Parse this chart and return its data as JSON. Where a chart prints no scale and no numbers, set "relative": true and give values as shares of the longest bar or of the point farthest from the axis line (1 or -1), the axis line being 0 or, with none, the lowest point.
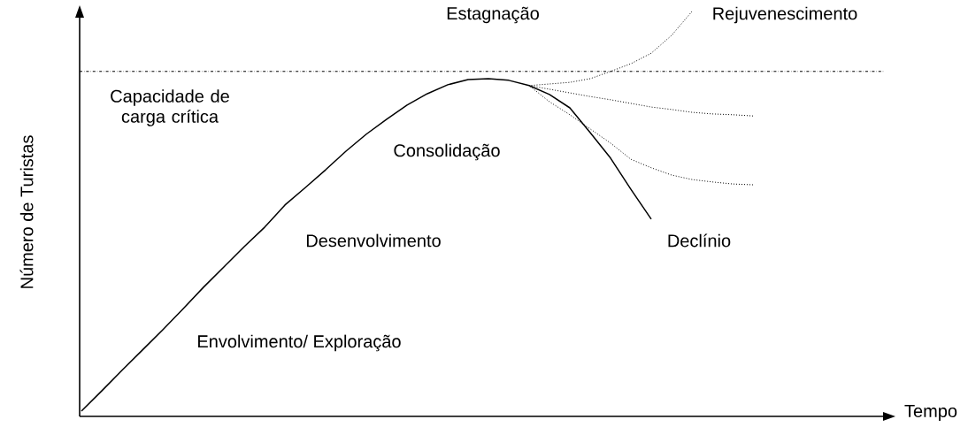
{
  "chart_data": {
    "type": "line",
    "relative": true,
    "xlabel": "Tempo",
    "ylabel": "Número de Turistas",
    "categories": [
      null,
      null,
      null,
      null,
      null,
      null,
      null,
      null,
      null,
      null,
      null,
      null,
      null,
      null,
      null,
      null,
      null,
      null,
      null,
      null,
      null,
      null,
      null,
      null,
      null,
      null,
      null,
      null,
      null,
      null,
      null,
      null,
      null,
      null,
      null,
      null,
      null,
      null,
      null,
      null
    ],
    "series": [
      {
        "color": "#000000",
        "line_style": "solid",
        "values": [
          0.013,
          0.063,
          0.114,
          0.164,
          0.214,
          0.266,
          0.319,
          0.369,
          0.419,
          0.467,
          0.522,
          0.565,
          0.609,
          0.655,
          0.697,
          0.734,
          0.769,
          0.797,
          0.819,
          0.832,
          0.834,
          0.83,
          0.817,
          0.795,
          0.762,
          0.701,
          0.638,
          0.561,
          0.487,
          null,
          null,
          null,
          null,
          null,
          null,
          null,
          null,
          null,
          null,
          null
        ]
      },
      {
        "color": "#000000",
        "line_style": "dotted",
        "values": [
          null,
          null,
          null,
          null,
          null,
          null,
          null,
          null,
          null,
          null,
          null,
          null,
          null,
          null,
          null,
          null,
          null,
          null,
          null,
          null,
          null,
          null,
          0.817,
          0.821,
          0.825,
          0.834,
          0.852,
          0.871,
          0.897,
          0.941,
          1.0,
          null,
          null,
          null,
          null,
          null,
          null,
          null,
          null,
          null
        ]
      },
      {
        "color": "#000000",
        "line_style": "dotted",
        "values": [
          null,
          null,
          null,
          null,
          null,
          null,
          null,
          null,
          null,
          null,
          null,
          null,
          null,
          null,
          null,
          null,
          null,
          null,
          null,
          null,
          null,
          null,
          0.817,
          0.808,
          0.799,
          0.79,
          0.782,
          0.773,
          0.764,
          0.758,
          0.751,
          0.747,
          0.745,
          0.742,
          null,
          null,
          null,
          null,
          null,
          null
        ]
      },
      {
        "color": "#000000",
        "line_style": "dotted",
        "values": [
          null,
          null,
          null,
          null,
          null,
          null,
          null,
          null,
          null,
          null,
          null,
          null,
          null,
          null,
          null,
          null,
          null,
          null,
          null,
          null,
          null,
          null,
          0.817,
          0.777,
          0.745,
          0.71,
          0.675,
          0.635,
          0.614,
          0.596,
          0.585,
          0.579,
          0.574,
          0.572,
          null,
          null,
          null,
          null,
          null,
          null
        ]
      }
    ],
    "ref_lines": [
      {
        "axis": "y",
        "value": 0.852,
        "label": "Capacidade de carga crítica",
        "color": "#000000",
        "line_style": "dashdot"
      }
    ],
    "annotations": [
      "Estagnação",
      "Rejuvenescimento",
      "Consolidação",
      "Desenvolvimento",
      "Declínio",
      "Envolvimento/ Exploração"
    ]
  }
}
